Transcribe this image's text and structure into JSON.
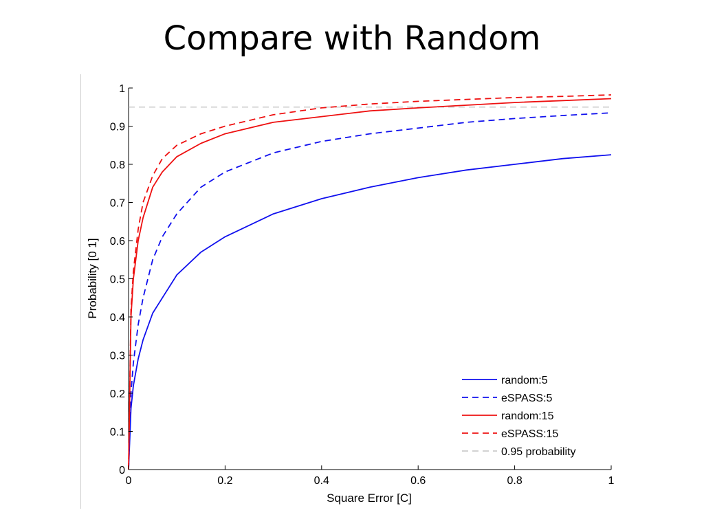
{
  "slide": {
    "title": "Compare with Random"
  },
  "chart_data": {
    "type": "line",
    "xlabel": "Square Error [C]",
    "ylabel": "Probability [0 1]",
    "xlim": [
      0,
      1
    ],
    "ylim": [
      0,
      1
    ],
    "grid": false,
    "legend_position": "bottom-right",
    "x_ticks": [
      {
        "value": 0,
        "label": "0"
      },
      {
        "value": 0.2,
        "label": "0.2"
      },
      {
        "value": 0.4,
        "label": "0.4"
      },
      {
        "value": 0.6,
        "label": "0.6"
      },
      {
        "value": 0.8,
        "label": "0.8"
      },
      {
        "value": 1,
        "label": "1"
      }
    ],
    "y_ticks": [
      {
        "value": 0,
        "label": "0"
      },
      {
        "value": 0.1,
        "label": "0.1"
      },
      {
        "value": 0.2,
        "label": "0.2"
      },
      {
        "value": 0.3,
        "label": "0.3"
      },
      {
        "value": 0.4,
        "label": "0.4"
      },
      {
        "value": 0.5,
        "label": "0.5"
      },
      {
        "value": 0.6,
        "label": "0.6"
      },
      {
        "value": 0.7,
        "label": "0.7"
      },
      {
        "value": 0.8,
        "label": "0.8"
      },
      {
        "value": 0.9,
        "label": "0.9"
      },
      {
        "value": 1,
        "label": "1"
      }
    ],
    "series": [
      {
        "name": "random:5",
        "color": "#1010ee",
        "dash": "solid",
        "x": [
          0,
          0.005,
          0.01,
          0.02,
          0.03,
          0.05,
          0.07,
          0.1,
          0.15,
          0.2,
          0.3,
          0.4,
          0.5,
          0.6,
          0.7,
          0.8,
          0.9,
          1.0
        ],
        "y": [
          0,
          0.16,
          0.22,
          0.29,
          0.34,
          0.41,
          0.45,
          0.51,
          0.57,
          0.61,
          0.67,
          0.71,
          0.74,
          0.765,
          0.785,
          0.8,
          0.815,
          0.825
        ]
      },
      {
        "name": "eSPASS:5",
        "color": "#1010ee",
        "dash": "dashed",
        "x": [
          0,
          0.005,
          0.01,
          0.02,
          0.03,
          0.05,
          0.07,
          0.1,
          0.15,
          0.2,
          0.3,
          0.4,
          0.5,
          0.6,
          0.7,
          0.8,
          0.9,
          1.0
        ],
        "y": [
          0,
          0.2,
          0.28,
          0.38,
          0.45,
          0.55,
          0.61,
          0.67,
          0.74,
          0.78,
          0.83,
          0.86,
          0.88,
          0.895,
          0.91,
          0.92,
          0.928,
          0.935
        ]
      },
      {
        "name": "random:15",
        "color": "#ee1010",
        "dash": "solid",
        "x": [
          0,
          0.005,
          0.01,
          0.02,
          0.03,
          0.05,
          0.07,
          0.1,
          0.15,
          0.2,
          0.3,
          0.4,
          0.5,
          0.6,
          0.7,
          0.8,
          0.9,
          1.0
        ],
        "y": [
          0,
          0.4,
          0.5,
          0.6,
          0.66,
          0.74,
          0.78,
          0.82,
          0.855,
          0.88,
          0.91,
          0.925,
          0.94,
          0.948,
          0.955,
          0.962,
          0.967,
          0.972
        ]
      },
      {
        "name": "eSPASS:15",
        "color": "#ee1010",
        "dash": "dashed",
        "x": [
          0,
          0.005,
          0.01,
          0.02,
          0.03,
          0.05,
          0.07,
          0.1,
          0.15,
          0.2,
          0.3,
          0.4,
          0.5,
          0.6,
          0.7,
          0.8,
          0.9,
          1.0
        ],
        "y": [
          0,
          0.42,
          0.52,
          0.63,
          0.7,
          0.77,
          0.815,
          0.85,
          0.88,
          0.9,
          0.93,
          0.948,
          0.958,
          0.965,
          0.97,
          0.975,
          0.978,
          0.982
        ]
      },
      {
        "name": "0.95 probability",
        "color": "#b8b8b8",
        "dash": "dashed",
        "x": [
          0,
          1
        ],
        "y": [
          0.95,
          0.95
        ]
      }
    ]
  }
}
